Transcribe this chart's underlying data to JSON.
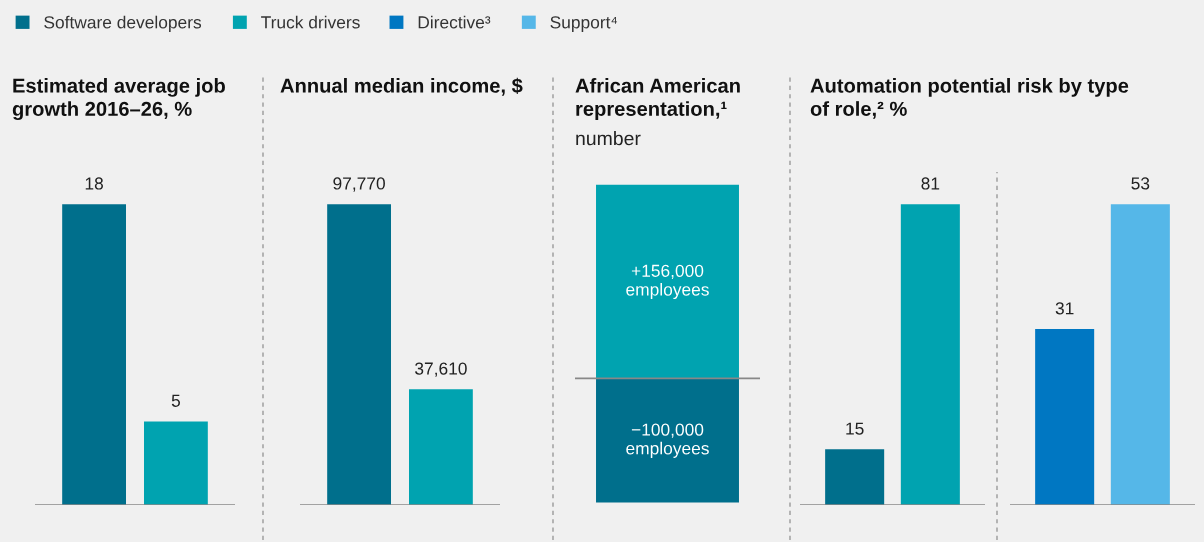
{
  "chart_data": [
    {
      "type": "bar",
      "title": "Estimated average job\ngrowth 2016–26, %",
      "categories": [
        null
      ],
      "legend": "top",
      "data_labels": true,
      "series": [
        {
          "name": "Software developers",
          "color": "#006f8c",
          "values": [
            18
          ]
        },
        {
          "name": "Truck drivers",
          "color": "#00a3b0",
          "values": [
            5
          ]
        }
      ]
    },
    {
      "type": "bar",
      "title": "Annual median income, $",
      "categories": [
        null
      ],
      "series": [
        {
          "color": "#006f8c",
          "values": [
            97770
          ],
          "value_labels": [
            "97,770"
          ]
        },
        {
          "color": "#00a3b0",
          "values": [
            37610
          ],
          "value_labels": [
            "37,610"
          ]
        }
      ]
    },
    {
      "type": "bar",
      "title": "African American\nrepresentation,¹",
      "subtitle": "number",
      "categories": [
        null
      ],
      "stacked": true,
      "series": [
        {
          "color": "#00a3b0",
          "values": [
            156000
          ],
          "value_labels": [
            "+156,000\nemployees"
          ]
        },
        {
          "color": "#006f8c",
          "values": [
            -100000
          ],
          "value_labels": [
            "−100,000\nemployees"
          ]
        }
      ]
    },
    {
      "type": "bar",
      "title": "Automation potential risk by type\nof role,² %",
      "categories": [
        null
      ],
      "data_labels": true,
      "series": [
        {
          "color": "#006f8c",
          "values": [
            15
          ]
        },
        {
          "color": "#00a3b0",
          "values": [
            81
          ]
        }
      ]
    },
    {
      "type": "bar",
      "categories": [
        null
      ],
      "data_labels": true,
      "legend": "top",
      "series": [
        {
          "name": "Directive³",
          "color": "#0077c2",
          "values": [
            31
          ]
        },
        {
          "name": "Support⁴",
          "color": "#55b7e8",
          "values": [
            53
          ]
        }
      ]
    }
  ]
}
